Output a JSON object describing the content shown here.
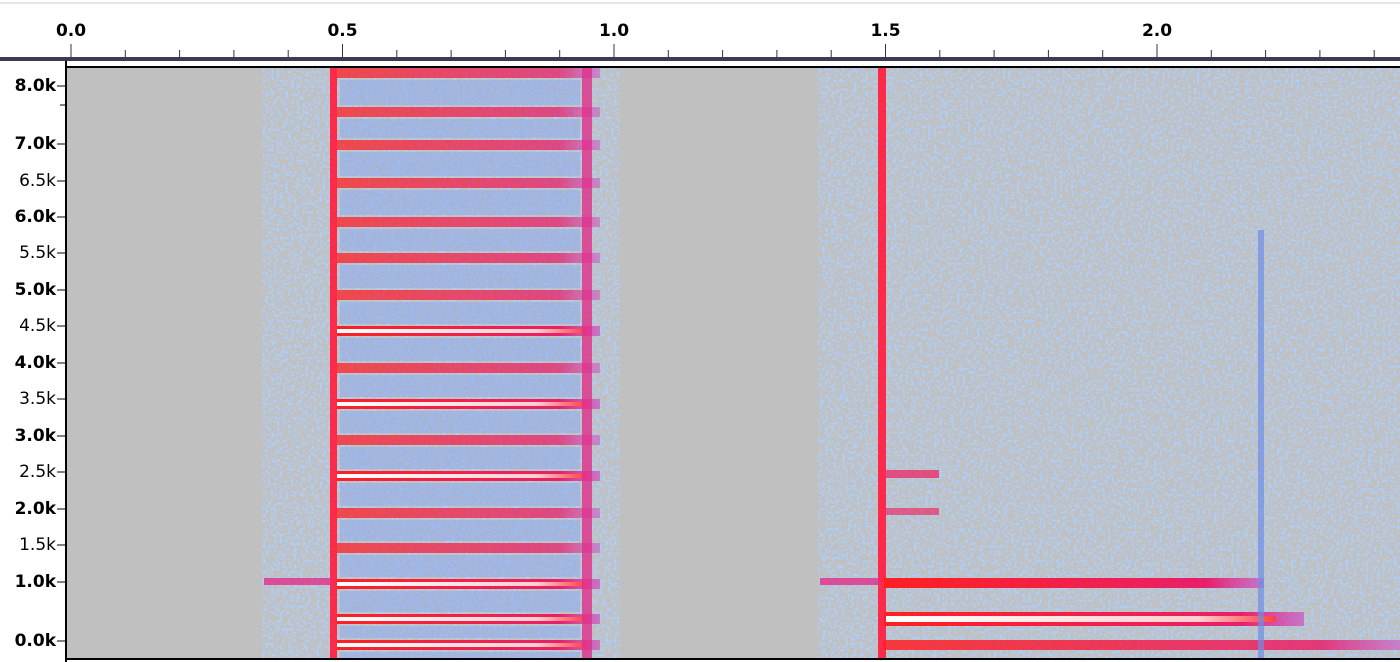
{
  "timeline": {
    "ticks": [
      "0.0",
      "0.5",
      "1.0",
      "1.5",
      "2.0"
    ]
  },
  "frequency_axis": {
    "labels": [
      "8.0k",
      "7.0k",
      "6.5k",
      "6.0k",
      "5.5k",
      "5.0k",
      "4.5k",
      "4.0k",
      "3.5k",
      "3.0k",
      "2.5k",
      "2.0k",
      "1.5k",
      "1.0k",
      "0.0k"
    ]
  }
}
